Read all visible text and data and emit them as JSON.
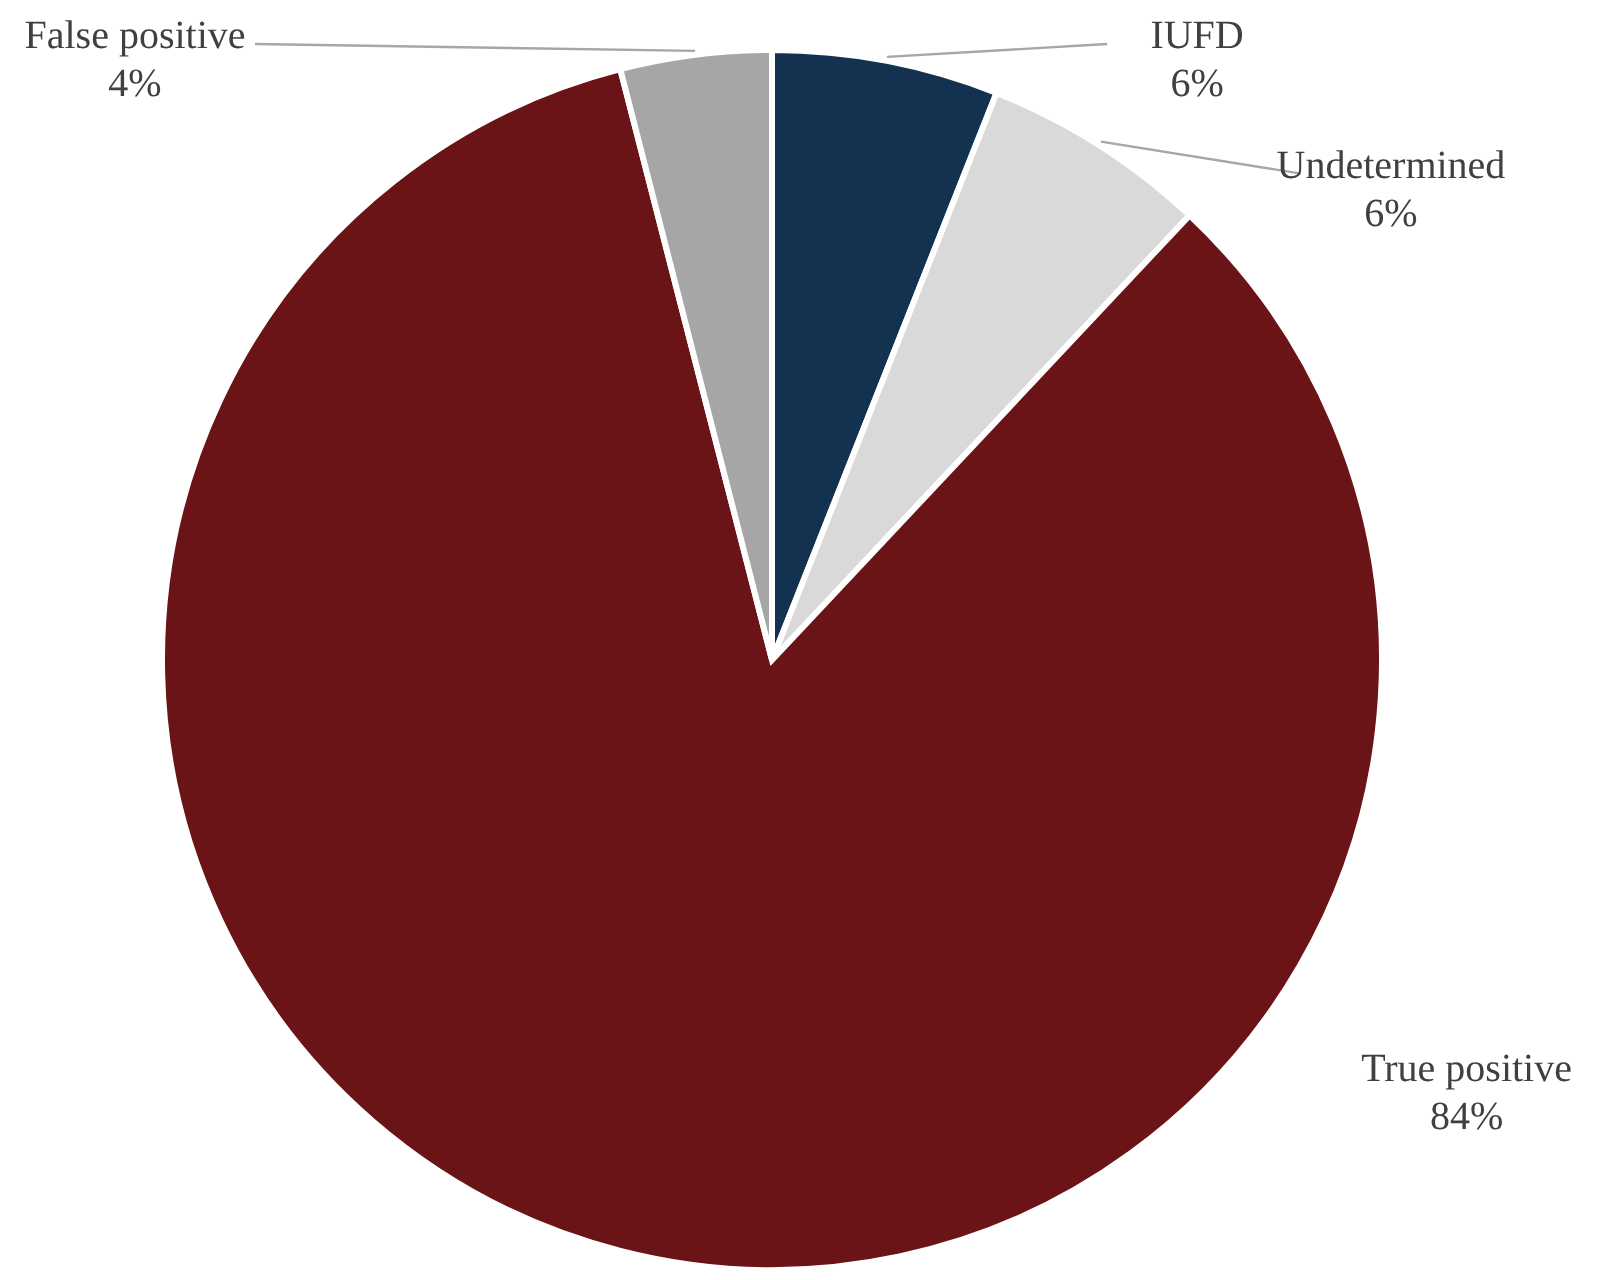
{
  "chart_data": {
    "type": "pie",
    "categories": [
      "IUFD",
      "Undetermined",
      "True positive",
      "False positive"
    ],
    "values": [
      6,
      6,
      84,
      4
    ],
    "colors": [
      "#12324f",
      "#d9d9d9",
      "#6b1418",
      "#a6a6a6"
    ],
    "value_labels": [
      "6%",
      "6%",
      "84%",
      "4%"
    ]
  }
}
